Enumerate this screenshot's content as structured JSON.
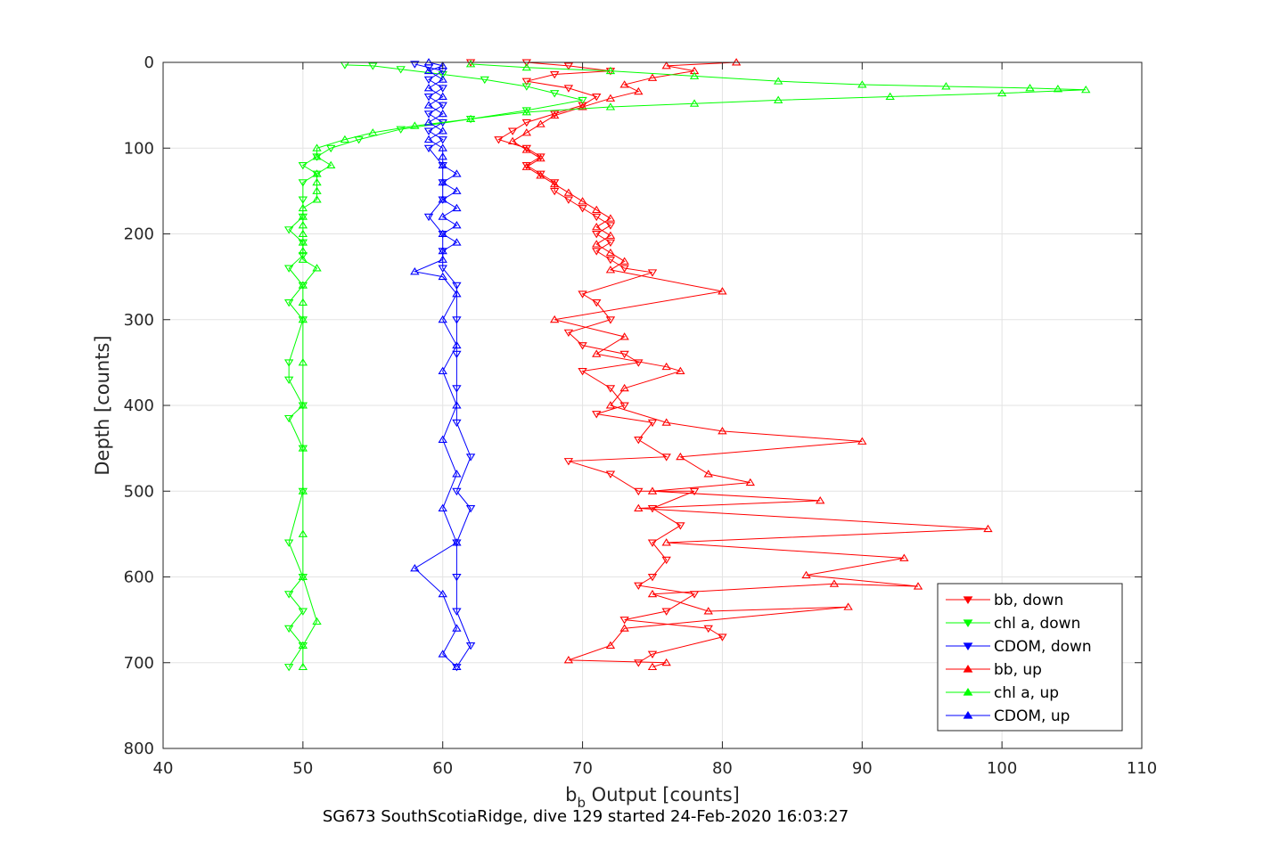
{
  "chart_data": {
    "type": "scatter",
    "xlabel_main": "b",
    "xlabel_sub": "b",
    "xlabel_rest": " Output [counts]",
    "ylabel": "Depth [counts]",
    "subtitle": "SG673 SouthScotiaRidge, dive 129 started 24-Feb-2020 16:03:27",
    "xlim": [
      40,
      110
    ],
    "ylim": [
      0,
      800
    ],
    "y_reversed": true,
    "grid": true,
    "x_ticks": [
      40,
      50,
      60,
      70,
      80,
      90,
      100,
      110
    ],
    "y_ticks": [
      0,
      100,
      200,
      300,
      400,
      500,
      600,
      700,
      800
    ],
    "legend_position": "bottom-right",
    "series": [
      {
        "name": "bb, down",
        "color": "#ff0000",
        "marker": "triangle-down",
        "line": true,
        "points": [
          [
            62,
            0
          ],
          [
            66,
            0
          ],
          [
            69,
            4
          ],
          [
            72,
            10
          ],
          [
            68,
            14
          ],
          [
            66,
            22
          ],
          [
            69,
            30
          ],
          [
            71,
            40
          ],
          [
            70,
            50
          ],
          [
            68,
            60
          ],
          [
            66,
            70
          ],
          [
            65,
            80
          ],
          [
            64,
            90
          ],
          [
            66,
            100
          ],
          [
            67,
            110
          ],
          [
            66,
            120
          ],
          [
            67,
            130
          ],
          [
            68,
            140
          ],
          [
            68,
            150
          ],
          [
            69,
            160
          ],
          [
            70,
            170
          ],
          [
            71,
            180
          ],
          [
            72,
            190
          ],
          [
            71,
            200
          ],
          [
            72,
            210
          ],
          [
            71,
            220
          ],
          [
            72,
            230
          ],
          [
            73,
            240
          ],
          [
            75,
            245
          ],
          [
            70,
            270
          ],
          [
            71,
            280
          ],
          [
            72,
            300
          ],
          [
            69,
            315
          ],
          [
            70,
            330
          ],
          [
            73,
            340
          ],
          [
            74,
            350
          ],
          [
            70,
            360
          ],
          [
            72,
            380
          ],
          [
            73,
            400
          ],
          [
            71,
            410
          ],
          [
            75,
            420
          ],
          [
            74,
            440
          ],
          [
            76,
            460
          ],
          [
            69,
            465
          ],
          [
            72,
            480
          ],
          [
            74,
            500
          ],
          [
            78,
            500
          ],
          [
            75,
            520
          ],
          [
            77,
            540
          ],
          [
            75,
            560
          ],
          [
            76,
            580
          ],
          [
            75,
            600
          ],
          [
            74,
            610
          ],
          [
            78,
            620
          ],
          [
            76,
            640
          ],
          [
            73,
            650
          ],
          [
            79,
            660
          ],
          [
            80,
            670
          ],
          [
            75,
            690
          ],
          [
            74,
            700
          ]
        ]
      },
      {
        "name": "chl a, down",
        "color": "#00ff00",
        "marker": "triangle-down",
        "line": true,
        "points": [
          [
            53,
            3
          ],
          [
            55,
            4
          ],
          [
            57,
            8
          ],
          [
            60,
            14
          ],
          [
            63,
            20
          ],
          [
            66,
            28
          ],
          [
            68,
            36
          ],
          [
            70,
            44
          ],
          [
            66,
            56
          ],
          [
            62,
            66
          ],
          [
            57,
            78
          ],
          [
            54,
            90
          ],
          [
            52,
            100
          ],
          [
            51,
            110
          ],
          [
            50,
            120
          ],
          [
            51,
            130
          ],
          [
            50,
            140
          ],
          [
            50,
            160
          ],
          [
            50,
            180
          ],
          [
            49,
            195
          ],
          [
            50,
            210
          ],
          [
            50,
            225
          ],
          [
            49,
            240
          ],
          [
            50,
            260
          ],
          [
            49,
            280
          ],
          [
            50,
            300
          ],
          [
            49,
            350
          ],
          [
            49,
            370
          ],
          [
            50,
            400
          ],
          [
            49,
            415
          ],
          [
            50,
            450
          ],
          [
            50,
            500
          ],
          [
            49,
            560
          ],
          [
            50,
            600
          ],
          [
            49,
            620
          ],
          [
            50,
            640
          ],
          [
            49,
            660
          ],
          [
            50,
            680
          ],
          [
            49,
            705
          ]
        ]
      },
      {
        "name": "CDOM, down",
        "color": "#0000ff",
        "marker": "triangle-down",
        "line": true,
        "points": [
          [
            58,
            2
          ],
          [
            59,
            6
          ],
          [
            60,
            10
          ],
          [
            59,
            20
          ],
          [
            60,
            30
          ],
          [
            59,
            40
          ],
          [
            60,
            50
          ],
          [
            59,
            60
          ],
          [
            60,
            70
          ],
          [
            59,
            80
          ],
          [
            60,
            90
          ],
          [
            59,
            100
          ],
          [
            60,
            120
          ],
          [
            60,
            140
          ],
          [
            60,
            160
          ],
          [
            59,
            180
          ],
          [
            60,
            200
          ],
          [
            60,
            220
          ],
          [
            60,
            240
          ],
          [
            61,
            260
          ],
          [
            61,
            300
          ],
          [
            61,
            340
          ],
          [
            61,
            380
          ],
          [
            61,
            420
          ],
          [
            62,
            460
          ],
          [
            61,
            500
          ],
          [
            62,
            520
          ],
          [
            61,
            560
          ],
          [
            61,
            600
          ],
          [
            61,
            640
          ],
          [
            62,
            680
          ],
          [
            61,
            705
          ]
        ]
      },
      {
        "name": "bb, up",
        "color": "#ff0000",
        "marker": "triangle-up",
        "line": true,
        "points": [
          [
            81,
            0
          ],
          [
            76,
            4
          ],
          [
            78,
            10
          ],
          [
            75,
            18
          ],
          [
            73,
            26
          ],
          [
            74,
            34
          ],
          [
            72,
            42
          ],
          [
            70,
            52
          ],
          [
            68,
            62
          ],
          [
            67,
            72
          ],
          [
            66,
            82
          ],
          [
            65,
            92
          ],
          [
            66,
            102
          ],
          [
            67,
            112
          ],
          [
            66,
            122
          ],
          [
            67,
            132
          ],
          [
            68,
            142
          ],
          [
            69,
            152
          ],
          [
            70,
            162
          ],
          [
            71,
            172
          ],
          [
            72,
            182
          ],
          [
            71,
            192
          ],
          [
            72,
            202
          ],
          [
            71,
            212
          ],
          [
            72,
            222
          ],
          [
            73,
            232
          ],
          [
            72,
            242
          ],
          [
            80,
            267
          ],
          [
            68,
            300
          ],
          [
            73,
            320
          ],
          [
            71,
            340
          ],
          [
            76,
            355
          ],
          [
            77,
            360
          ],
          [
            73,
            380
          ],
          [
            72,
            400
          ],
          [
            76,
            420
          ],
          [
            80,
            430
          ],
          [
            90,
            442
          ],
          [
            77,
            460
          ],
          [
            79,
            480
          ],
          [
            82,
            490
          ],
          [
            75,
            500
          ],
          [
            87,
            511
          ],
          [
            74,
            520
          ],
          [
            99,
            544
          ],
          [
            76,
            560
          ],
          [
            93,
            578
          ],
          [
            86,
            598
          ],
          [
            94,
            611
          ],
          [
            88,
            608
          ],
          [
            75,
            620
          ],
          [
            79,
            640
          ],
          [
            89,
            635
          ],
          [
            73,
            660
          ],
          [
            72,
            680
          ],
          [
            69,
            697
          ],
          [
            76,
            700
          ],
          [
            75,
            705
          ]
        ]
      },
      {
        "name": "chl a, up",
        "color": "#00ff00",
        "marker": "triangle-up",
        "line": true,
        "points": [
          [
            62,
            2
          ],
          [
            66,
            6
          ],
          [
            72,
            10
          ],
          [
            78,
            16
          ],
          [
            84,
            22
          ],
          [
            90,
            26
          ],
          [
            96,
            28
          ],
          [
            102,
            30
          ],
          [
            104,
            31
          ],
          [
            106,
            32
          ],
          [
            100,
            36
          ],
          [
            92,
            40
          ],
          [
            84,
            44
          ],
          [
            78,
            48
          ],
          [
            72,
            52
          ],
          [
            66,
            58
          ],
          [
            62,
            66
          ],
          [
            58,
            74
          ],
          [
            55,
            82
          ],
          [
            53,
            90
          ],
          [
            51,
            100
          ],
          [
            51,
            110
          ],
          [
            52,
            120
          ],
          [
            51,
            130
          ],
          [
            51,
            140
          ],
          [
            51,
            150
          ],
          [
            51,
            160
          ],
          [
            50,
            170
          ],
          [
            50,
            180
          ],
          [
            50,
            190
          ],
          [
            50,
            200
          ],
          [
            50,
            210
          ],
          [
            50,
            220
          ],
          [
            50,
            230
          ],
          [
            51,
            240
          ],
          [
            50,
            260
          ],
          [
            50,
            280
          ],
          [
            50,
            300
          ],
          [
            50,
            350
          ],
          [
            50,
            400
          ],
          [
            50,
            450
          ],
          [
            50,
            500
          ],
          [
            50,
            550
          ],
          [
            50,
            600
          ],
          [
            51,
            652
          ],
          [
            50,
            680
          ],
          [
            50,
            705
          ]
        ]
      },
      {
        "name": "CDOM, up",
        "color": "#0000ff",
        "marker": "triangle-up",
        "line": true,
        "points": [
          [
            59,
            0
          ],
          [
            60,
            4
          ],
          [
            59,
            10
          ],
          [
            60,
            20
          ],
          [
            59,
            30
          ],
          [
            60,
            40
          ],
          [
            59,
            50
          ],
          [
            60,
            60
          ],
          [
            59,
            70
          ],
          [
            60,
            80
          ],
          [
            59,
            90
          ],
          [
            60,
            100
          ],
          [
            60,
            110
          ],
          [
            60,
            120
          ],
          [
            61,
            130
          ],
          [
            60,
            140
          ],
          [
            61,
            150
          ],
          [
            60,
            160
          ],
          [
            61,
            170
          ],
          [
            60,
            180
          ],
          [
            61,
            190
          ],
          [
            60,
            200
          ],
          [
            61,
            210
          ],
          [
            60,
            220
          ],
          [
            60,
            230
          ],
          [
            58,
            244
          ],
          [
            60,
            250
          ],
          [
            61,
            270
          ],
          [
            60,
            300
          ],
          [
            61,
            330
          ],
          [
            60,
            360
          ],
          [
            61,
            400
          ],
          [
            60,
            440
          ],
          [
            61,
            480
          ],
          [
            60,
            520
          ],
          [
            61,
            560
          ],
          [
            58,
            590
          ],
          [
            60,
            620
          ],
          [
            61,
            660
          ],
          [
            60,
            690
          ],
          [
            61,
            705
          ]
        ]
      }
    ]
  }
}
